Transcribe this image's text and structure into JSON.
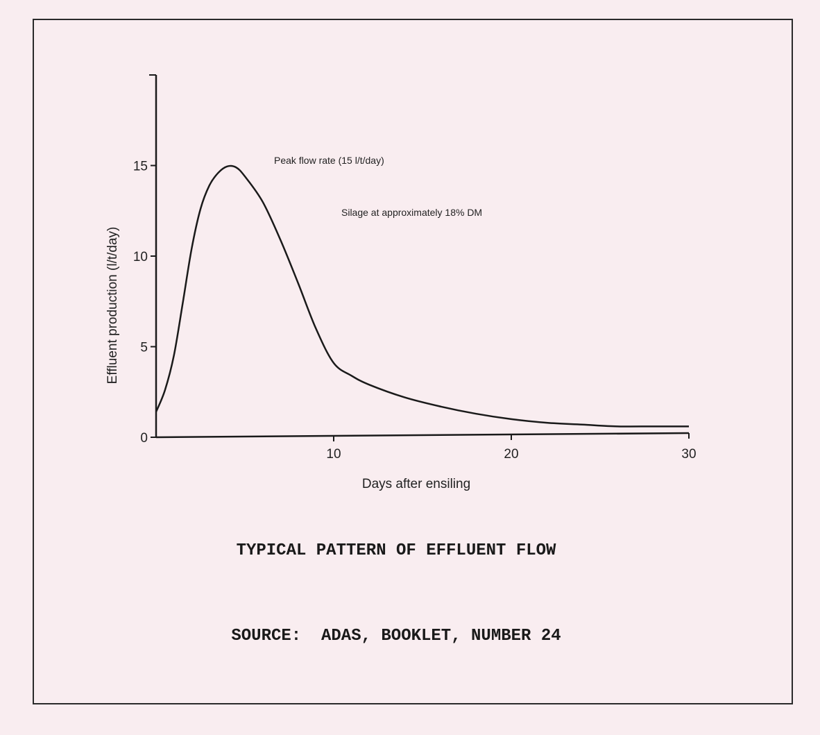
{
  "chart_data": {
    "type": "line",
    "xlabel": "Days after ensiling",
    "ylabel": "Effluent production (l/t/day)",
    "xlim": [
      0,
      30
    ],
    "ylim": [
      0,
      20
    ],
    "x_ticks": [
      10,
      20,
      30
    ],
    "y_ticks": [
      0,
      5,
      10,
      15
    ],
    "grid": false,
    "legend": "none",
    "series": [
      {
        "x": [
          0,
          0.5,
          1,
          1.5,
          2,
          2.5,
          3,
          3.5,
          4,
          4.5,
          5,
          6,
          7,
          8,
          9,
          10,
          11,
          12,
          14,
          16,
          18,
          20,
          22,
          24,
          26,
          28,
          30
        ],
        "y": [
          1.4,
          2.6,
          4.5,
          7.4,
          10.4,
          12.6,
          13.9,
          14.6,
          14.95,
          14.9,
          14.4,
          13.0,
          10.9,
          8.5,
          6.0,
          4.1,
          3.4,
          2.9,
          2.2,
          1.7,
          1.3,
          1.0,
          0.8,
          0.7,
          0.6,
          0.6,
          0.6
        ]
      }
    ],
    "annotations": [
      "Peak flow rate (15 l/t/day)",
      "Silage at approximately 18% DM"
    ],
    "line_color": "#1a1a1a"
  },
  "caption": {
    "title": "TYPICAL PATTERN OF EFFLUENT FLOW",
    "source": "SOURCE:  ADAS, BOOKLET, NUMBER 24"
  }
}
